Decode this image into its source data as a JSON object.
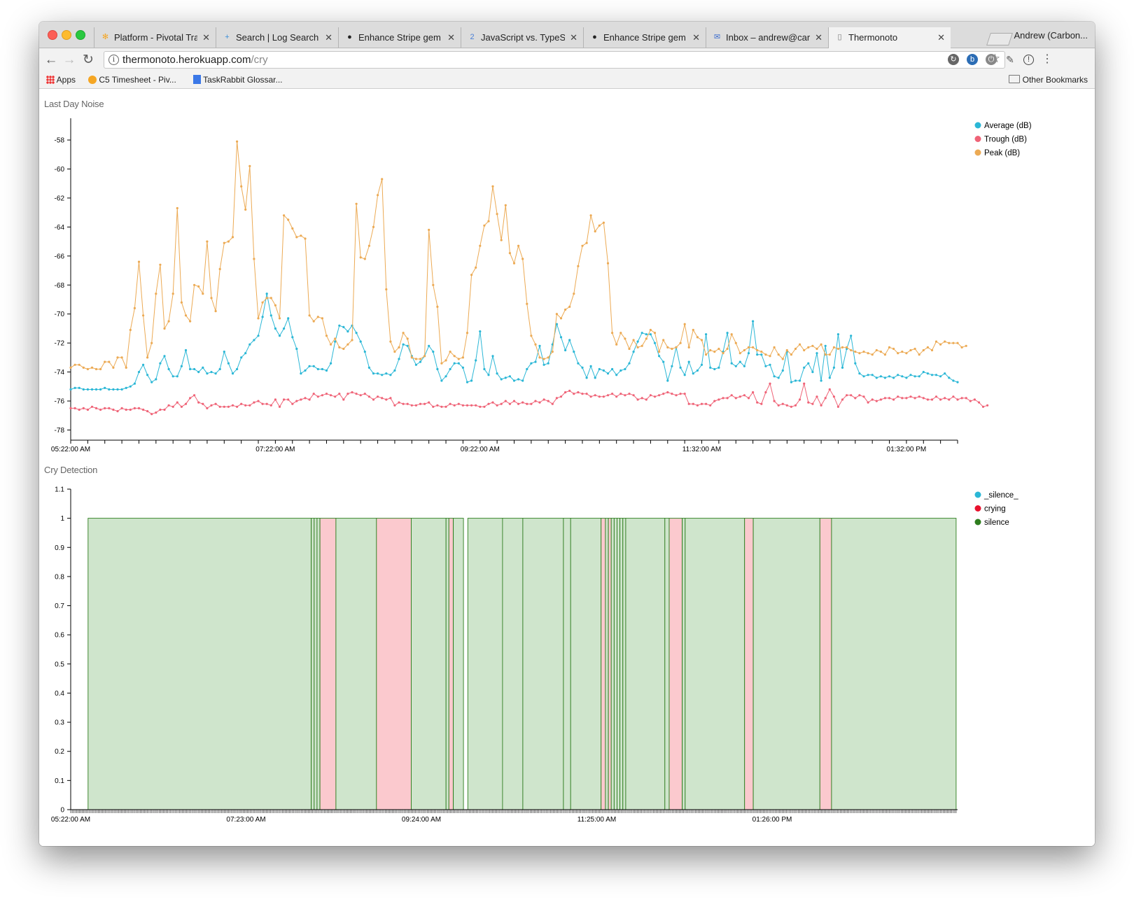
{
  "browser": {
    "tabs": [
      {
        "label": "Platform - Pivotal Trac",
        "icon": "pivotal-icon",
        "icon_color": "#f5a623"
      },
      {
        "label": "Search | Log Search |",
        "icon": "plus-icon",
        "icon_color": "#3b8fd9"
      },
      {
        "label": "Enhance Stripe gem to",
        "icon": "github-icon",
        "icon_color": "#222222"
      },
      {
        "label": "JavaScript vs. TypeSc",
        "icon": "number-2-icon",
        "icon_color": "#4a7fd6"
      },
      {
        "label": "Enhance Stripe gem to",
        "icon": "github-icon",
        "icon_color": "#222222"
      },
      {
        "label": "Inbox – andrew@carbo",
        "icon": "inbox-icon",
        "icon_color": "#3f6fcf"
      },
      {
        "label": "Thermonoto",
        "icon": "document-icon",
        "icon_color": "#777777"
      }
    ],
    "active_tab": 6,
    "profile": "Andrew (Carbon...",
    "url_host": "thermonoto.herokuapp.com",
    "url_path": "/cry",
    "bookmarks": [
      {
        "label": "Apps",
        "icon": "apps-grid-icon"
      },
      {
        "label": "C5 Timesheet - Piv...",
        "icon": "pivotal-icon"
      },
      {
        "label": "TaskRabbit Glossar...",
        "icon": "docs-icon"
      }
    ],
    "other_bookmarks": "Other Bookmarks"
  },
  "charts": {
    "noise_title": "Last Day Noise",
    "cry_title": "Cry Detection"
  },
  "chart_data": [
    {
      "type": "line",
      "title": "Last Day Noise",
      "xlabel": "",
      "ylabel": "",
      "ylim": [
        -78.7,
        -56.5
      ],
      "yticks": [
        -58,
        -60,
        -62,
        -64,
        -66,
        -68,
        -70,
        -72,
        -74,
        -76,
        -78
      ],
      "xtick_labels": [
        "05:22:00 AM",
        "07:22:00 AM",
        "09:22:00 AM",
        "11:32:00 AM",
        "01:32:00 PM"
      ],
      "xtick_positions": [
        0,
        48,
        96,
        148,
        196
      ],
      "legend_position": "top-right",
      "series": [
        {
          "name": "Average (dB)",
          "color": "#2bb7d6",
          "values": [
            -75.2,
            -75.1,
            -75.1,
            -75.2,
            -75.2,
            -75.2,
            -75.2,
            -75.2,
            -75.1,
            -75.2,
            -75.2,
            -75.2,
            -75.2,
            -75.1,
            -75.0,
            -74.8,
            -74.0,
            -73.5,
            -74.2,
            -74.7,
            -74.5,
            -73.4,
            -72.9,
            -73.8,
            -74.3,
            -74.3,
            -73.6,
            -72.5,
            -73.8,
            -73.8,
            -74.0,
            -73.7,
            -74.1,
            -74.0,
            -74.1,
            -73.8,
            -72.6,
            -73.4,
            -74.1,
            -73.8,
            -73.0,
            -72.7,
            -72.1,
            -71.8,
            -71.5,
            -70.2,
            -68.6,
            -70.1,
            -71.0,
            -71.5,
            -71.0,
            -70.3,
            -71.6,
            -72.4,
            -74.1,
            -73.9,
            -73.6,
            -73.6,
            -73.8,
            -73.8,
            -73.9,
            -73.4,
            -71.9,
            -70.8,
            -70.9,
            -71.2,
            -70.8,
            -71.3,
            -71.9,
            -72.6,
            -73.7,
            -74.1,
            -74.1,
            -74.2,
            -74.1,
            -74.2,
            -73.9,
            -73.1,
            -72.1,
            -72.2,
            -72.9,
            -73.5,
            -73.3,
            -72.9,
            -72.2,
            -72.6,
            -73.8,
            -74.6,
            -74.3,
            -73.8,
            -73.4,
            -73.4,
            -73.7,
            -74.7,
            -74.6,
            -73.2,
            -71.2,
            -73.8,
            -74.2,
            -72.9,
            -74.1,
            -74.5,
            -74.4,
            -74.3,
            -74.6,
            -74.5,
            -74.6,
            -73.8,
            -73.4,
            -73.3,
            -72.2,
            -73.5,
            -73.4,
            -72.1,
            -70.7,
            -71.6,
            -72.5,
            -71.8,
            -72.6,
            -73.4,
            -73.7,
            -74.4,
            -73.6,
            -74.4,
            -73.8,
            -73.9,
            -74.1,
            -73.8,
            -74.2,
            -73.9,
            -73.8,
            -73.4,
            -72.6,
            -71.9,
            -71.3,
            -71.4,
            -71.4,
            -72.0,
            -72.9,
            -73.3,
            -74.6,
            -73.6,
            -72.3,
            -73.7,
            -74.2,
            -73.3,
            -74.1,
            -73.9,
            -73.5,
            -71.4,
            -73.7,
            -73.8,
            -73.7,
            -72.6,
            -71.3,
            -73.4,
            -73.6,
            -73.3,
            -73.6,
            -72.7,
            -70.5,
            -72.8,
            -72.8,
            -73.6,
            -73.5,
            -74.3,
            -74.4,
            -73.9,
            -72.6,
            -74.7,
            -74.6,
            -74.6,
            -73.7,
            -73.4,
            -74.0,
            -72.7,
            -74.6,
            -72.2,
            -74.4,
            -73.7,
            -71.4,
            -73.7,
            -72.4,
            -71.5,
            -73.4,
            -74.1,
            -74.3,
            -74.2,
            -74.2,
            -74.4,
            -74.3,
            -74.4,
            -74.3,
            -74.4,
            -74.2,
            -74.3,
            -74.4,
            -74.2,
            -74.3,
            -74.3,
            -74.0,
            -74.1,
            -74.2,
            -74.2,
            -74.3,
            -74.1,
            -74.4,
            -74.6,
            -74.7
          ]
        },
        {
          "name": "Trough (dB)",
          "color": "#ef6377",
          "values": [
            -76.5,
            -76.5,
            -76.6,
            -76.5,
            -76.6,
            -76.4,
            -76.5,
            -76.6,
            -76.5,
            -76.5,
            -76.6,
            -76.7,
            -76.5,
            -76.6,
            -76.6,
            -76.5,
            -76.5,
            -76.6,
            -76.7,
            -76.9,
            -76.8,
            -76.6,
            -76.6,
            -76.3,
            -76.4,
            -76.1,
            -76.4,
            -76.2,
            -75.8,
            -75.6,
            -76.1,
            -76.2,
            -76.5,
            -76.3,
            -76.2,
            -76.4,
            -76.4,
            -76.4,
            -76.3,
            -76.4,
            -76.2,
            -76.3,
            -76.3,
            -76.1,
            -76.0,
            -76.2,
            -76.2,
            -76.3,
            -75.9,
            -76.4,
            -75.9,
            -75.9,
            -76.2,
            -76.0,
            -75.9,
            -75.8,
            -75.9,
            -75.5,
            -75.7,
            -75.6,
            -75.5,
            -75.6,
            -75.7,
            -75.5,
            -75.9,
            -75.5,
            -75.4,
            -75.5,
            -75.6,
            -75.5,
            -75.7,
            -75.9,
            -75.7,
            -75.8,
            -75.9,
            -75.8,
            -76.3,
            -76.1,
            -76.2,
            -76.2,
            -76.3,
            -76.3,
            -76.2,
            -76.2,
            -76.1,
            -76.4,
            -76.3,
            -76.4,
            -76.4,
            -76.2,
            -76.3,
            -76.2,
            -76.3,
            -76.3,
            -76.3,
            -76.3,
            -76.4,
            -76.4,
            -76.2,
            -76.1,
            -76.3,
            -76.2,
            -76.0,
            -76.2,
            -76.0,
            -76.2,
            -76.1,
            -76.2,
            -76.2,
            -76.0,
            -76.1,
            -75.9,
            -76.0,
            -76.2,
            -75.8,
            -75.7,
            -75.4,
            -75.3,
            -75.5,
            -75.4,
            -75.5,
            -75.5,
            -75.7,
            -75.6,
            -75.7,
            -75.7,
            -75.6,
            -75.5,
            -75.7,
            -75.5,
            -75.6,
            -75.5,
            -75.6,
            -75.9,
            -75.8,
            -75.9,
            -75.6,
            -75.7,
            -75.6,
            -75.5,
            -75.4,
            -75.5,
            -75.6,
            -75.5,
            -75.5,
            -76.2,
            -76.2,
            -76.3,
            -76.2,
            -76.2,
            -76.3,
            -76.0,
            -75.9,
            -75.8,
            -75.8,
            -75.6,
            -75.8,
            -75.7,
            -75.6,
            -75.8,
            -75.4,
            -76.1,
            -76.2,
            -75.4,
            -74.8,
            -76.0,
            -76.3,
            -76.2,
            -76.3,
            -76.4,
            -76.3,
            -75.9,
            -74.8,
            -76.1,
            -76.2,
            -75.7,
            -76.3,
            -75.8,
            -75.2,
            -75.7,
            -76.4,
            -75.9,
            -75.6,
            -75.6,
            -75.8,
            -75.6,
            -75.7,
            -76.1,
            -75.9,
            -76.0,
            -75.9,
            -75.8,
            -75.8,
            -75.9,
            -75.7,
            -75.8,
            -75.8,
            -75.7,
            -75.8,
            -75.7,
            -75.8,
            -75.9,
            -75.9,
            -75.7,
            -75.9,
            -75.8,
            -75.9,
            -75.7,
            -75.9,
            -75.8,
            -75.8,
            -76.0,
            -75.9,
            -76.1,
            -76.4,
            -76.3
          ]
        },
        {
          "name": "Peak (dB)",
          "color": "#ecaa54",
          "values": [
            -73.7,
            -73.5,
            -73.5,
            -73.7,
            -73.8,
            -73.7,
            -73.8,
            -73.8,
            -73.3,
            -73.3,
            -73.7,
            -73.0,
            -73.0,
            -73.7,
            -71.1,
            -69.6,
            -66.4,
            -70.1,
            -73.0,
            -72.0,
            -68.6,
            -66.6,
            -71.0,
            -70.5,
            -68.6,
            -62.7,
            -69.2,
            -70.1,
            -70.5,
            -68.0,
            -68.1,
            -68.6,
            -65.0,
            -68.9,
            -69.8,
            -66.9,
            -65.1,
            -65.0,
            -64.7,
            -58.1,
            -61.2,
            -62.8,
            -59.8,
            -66.2,
            -70.3,
            -69.2,
            -68.9,
            -68.9,
            -69.4,
            -70.3,
            -63.2,
            -63.5,
            -64.1,
            -64.7,
            -64.6,
            -64.8,
            -70.1,
            -70.5,
            -70.2,
            -70.3,
            -71.5,
            -72.1,
            -71.7,
            -72.3,
            -72.4,
            -72.1,
            -71.8,
            -62.4,
            -66.1,
            -66.2,
            -65.3,
            -64.0,
            -61.8,
            -60.7,
            -68.3,
            -71.9,
            -72.6,
            -72.3,
            -71.3,
            -71.7,
            -73.0,
            -73.1,
            -73.1,
            -72.9,
            -64.2,
            -68.0,
            -69.5,
            -73.4,
            -73.2,
            -72.6,
            -72.9,
            -73.1,
            -73.0,
            -71.3,
            -67.3,
            -66.8,
            -65.3,
            -63.9,
            -63.6,
            -61.2,
            -63.1,
            -64.9,
            -62.5,
            -65.8,
            -66.5,
            -65.3,
            -66.2,
            -69.3,
            -71.5,
            -72.1,
            -73.0,
            -73.1,
            -73.0,
            -72.6,
            -70.0,
            -70.3,
            -69.7,
            -69.5,
            -68.6,
            -66.7,
            -65.3,
            -65.1,
            -63.2,
            -64.3,
            -63.9,
            -63.7,
            -66.5,
            -71.3,
            -72.1,
            -71.3,
            -71.7,
            -72.4,
            -71.8,
            -72.3,
            -72.2,
            -71.7,
            -71.1,
            -71.3,
            -72.6,
            -71.8,
            -72.3,
            -72.4,
            -72.3,
            -72.0,
            -70.7,
            -72.3,
            -71.1,
            -71.6,
            -71.8,
            -72.8,
            -72.5,
            -72.6,
            -72.4,
            -72.7,
            -72.4,
            -71.4,
            -72.0,
            -72.7,
            -72.5,
            -72.3,
            -72.3,
            -72.5,
            -72.6,
            -72.8,
            -72.9,
            -72.3,
            -72.8,
            -73.1,
            -72.5,
            -72.8,
            -72.4,
            -72.1,
            -72.5,
            -72.3,
            -72.2,
            -72.4,
            -72.1,
            -72.8,
            -72.8,
            -72.3,
            -72.4,
            -72.3,
            -72.3,
            -72.5,
            -72.6,
            -72.7,
            -72.6,
            -72.7,
            -72.8,
            -72.5,
            -72.6,
            -72.8,
            -72.3,
            -72.4,
            -72.7,
            -72.6,
            -72.7,
            -72.5,
            -72.4,
            -72.8,
            -72.5,
            -72.3,
            -72.5,
            -71.9,
            -72.1,
            -71.9,
            -72.0,
            -72.0,
            -72.0,
            -72.3,
            -72.2
          ]
        }
      ]
    },
    {
      "type": "bar",
      "title": "Cry Detection",
      "xlabel": "",
      "ylabel": "",
      "ylim": [
        0,
        1.1
      ],
      "yticks": [
        0,
        0.1,
        0.2,
        0.3,
        0.4,
        0.5,
        0.6,
        0.7,
        0.8,
        0.9,
        1,
        1.1
      ],
      "xtick_labels": [
        "05:22:00 AM",
        "07:23:00 AM",
        "09:24:00 AM",
        "11:25:00 AM",
        "01:26:00 PM"
      ],
      "x_range": [
        0,
        500
      ],
      "xtick_positions": [
        0,
        121,
        242,
        363,
        484
      ],
      "legend_position": "top-right",
      "legend": [
        {
          "name": "_silence_",
          "color": "#2bb7d6"
        },
        {
          "name": "crying",
          "color": "#e8112d"
        },
        {
          "name": "silence",
          "color": "#2e7d1e"
        }
      ],
      "segments": [
        {
          "label": "silence",
          "start": 12,
          "end": 166,
          "value": 1
        },
        {
          "label": "silence",
          "start": 166,
          "end": 168,
          "value": 1
        },
        {
          "label": "silence",
          "start": 168,
          "end": 170,
          "value": 1
        },
        {
          "label": "silence",
          "start": 170,
          "end": 172,
          "value": 1
        },
        {
          "label": "crying",
          "start": 172,
          "end": 183,
          "value": 1
        },
        {
          "label": "silence",
          "start": 183,
          "end": 211,
          "value": 1
        },
        {
          "label": "crying",
          "start": 211,
          "end": 235,
          "value": 1
        },
        {
          "label": "silence",
          "start": 235,
          "end": 259,
          "value": 1
        },
        {
          "label": "silence",
          "start": 259,
          "end": 261,
          "value": 1
        },
        {
          "label": "crying",
          "start": 261,
          "end": 264,
          "value": 1
        },
        {
          "label": "silence",
          "start": 264,
          "end": 271,
          "value": 1
        },
        {
          "label": "silence",
          "start": 274,
          "end": 298,
          "value": 1
        },
        {
          "label": "silence",
          "start": 298,
          "end": 312,
          "value": 1
        },
        {
          "label": "silence",
          "start": 312,
          "end": 340,
          "value": 1
        },
        {
          "label": "silence",
          "start": 340,
          "end": 345,
          "value": 1
        },
        {
          "label": "silence",
          "start": 345,
          "end": 366,
          "value": 1
        },
        {
          "label": "crying",
          "start": 366,
          "end": 369,
          "value": 1
        },
        {
          "label": "silence",
          "start": 369,
          "end": 371,
          "value": 1
        },
        {
          "label": "crying",
          "start": 371,
          "end": 373,
          "value": 1
        },
        {
          "label": "silence",
          "start": 373,
          "end": 375,
          "value": 1
        },
        {
          "label": "silence",
          "start": 375,
          "end": 377,
          "value": 1
        },
        {
          "label": "silence",
          "start": 377,
          "end": 379,
          "value": 1
        },
        {
          "label": "silence",
          "start": 379,
          "end": 381,
          "value": 1
        },
        {
          "label": "silence",
          "start": 381,
          "end": 383,
          "value": 1
        },
        {
          "label": "silence",
          "start": 383,
          "end": 410,
          "value": 1
        },
        {
          "label": "silence",
          "start": 410,
          "end": 413,
          "value": 1
        },
        {
          "label": "crying",
          "start": 413,
          "end": 422,
          "value": 1
        },
        {
          "label": "silence",
          "start": 422,
          "end": 424,
          "value": 1
        },
        {
          "label": "silence",
          "start": 424,
          "end": 465,
          "value": 1
        },
        {
          "label": "crying",
          "start": 465,
          "end": 471,
          "value": 1
        },
        {
          "label": "silence",
          "start": 471,
          "end": 517,
          "value": 1
        },
        {
          "label": "crying",
          "start": 517,
          "end": 525,
          "value": 1
        },
        {
          "label": "silence",
          "start": 525,
          "end": 611,
          "value": 1
        }
      ]
    }
  ]
}
